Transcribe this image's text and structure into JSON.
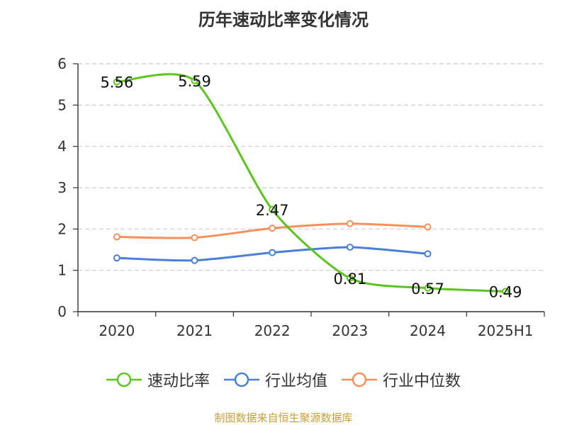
{
  "chart_data": {
    "type": "line",
    "title": "历年速动比率变化情况",
    "categories": [
      "2020",
      "2021",
      "2022",
      "2023",
      "2024",
      "2025H1"
    ],
    "ylim": [
      0,
      6
    ],
    "yticks": [
      0,
      1,
      2,
      3,
      4,
      5,
      6
    ],
    "grid": true,
    "legend_position": "bottom",
    "series": [
      {
        "name": "速动比率",
        "color": "#5cc41e",
        "values": [
          5.56,
          5.59,
          2.47,
          0.81,
          0.57,
          0.49
        ],
        "labels": true
      },
      {
        "name": "行业均值",
        "color": "#4a7fd8",
        "values": [
          1.3,
          1.24,
          1.43,
          1.56,
          1.4,
          null
        ],
        "labels": false
      },
      {
        "name": "行业中位数",
        "color": "#f5905a",
        "values": [
          1.81,
          1.79,
          2.02,
          2.13,
          2.05,
          null
        ],
        "labels": false
      }
    ],
    "source": "制图数据来自恒生聚源数据库"
  }
}
